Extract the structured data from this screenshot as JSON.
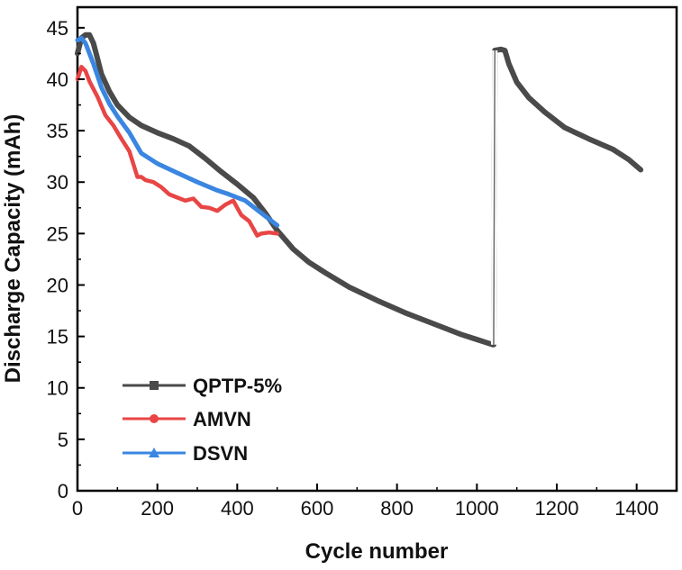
{
  "chart_data": {
    "type": "line",
    "title": "",
    "xlabel": "Cycle number",
    "ylabel": "Discharge Capacity (mAh)",
    "xlim": [
      0,
      1500
    ],
    "ylim": [
      0,
      47
    ],
    "xticks": [
      0,
      200,
      400,
      600,
      800,
      1000,
      1200,
      1400
    ],
    "yticks": [
      0,
      5,
      10,
      15,
      20,
      25,
      30,
      35,
      40,
      45
    ],
    "legend_position": "bottom-left",
    "series": [
      {
        "name": "QPTP-5%",
        "color": "#4a4a4a",
        "marker": "square",
        "x": [
          0,
          10,
          20,
          30,
          40,
          50,
          60,
          80,
          100,
          130,
          160,
          200,
          240,
          280,
          320,
          360,
          400,
          440,
          470,
          500,
          540,
          580,
          620,
          680,
          750,
          820,
          900,
          960,
          1000,
          1040,
          1042,
          1045,
          1060,
          1070,
          1080,
          1100,
          1130,
          1170,
          1220,
          1280,
          1340,
          1380,
          1410
        ],
        "y": [
          42.5,
          44,
          44.3,
          44.3,
          43.5,
          42,
          40.5,
          38.8,
          37.5,
          36.3,
          35.5,
          34.8,
          34.2,
          33.5,
          32.3,
          31,
          29.8,
          28.5,
          27,
          25.3,
          23.5,
          22.2,
          21.2,
          19.8,
          18.5,
          17.3,
          16.1,
          15.2,
          14.7,
          14.2,
          14.2,
          42.8,
          42.9,
          42.8,
          41.5,
          39.7,
          38.2,
          36.8,
          35.3,
          34.2,
          33.2,
          32.2,
          31.2
        ]
      },
      {
        "name": "AMVN",
        "color": "#e84545",
        "marker": "circle",
        "x": [
          0,
          10,
          20,
          30,
          50,
          70,
          90,
          110,
          130,
          150,
          160,
          170,
          190,
          210,
          230,
          250,
          270,
          290,
          310,
          330,
          350,
          370,
          390,
          410,
          430,
          450,
          460,
          480,
          500
        ],
        "y": [
          40,
          41.2,
          40.8,
          39.8,
          38.3,
          36.5,
          35.5,
          34.2,
          33,
          30.5,
          30.5,
          30.2,
          30,
          29.5,
          28.8,
          28.5,
          28.2,
          28.4,
          27.6,
          27.5,
          27.2,
          27.8,
          28.2,
          26.8,
          26.2,
          24.8,
          25,
          25.1,
          25
        ]
      },
      {
        "name": "DSVN",
        "color": "#3a86e0",
        "marker": "triangle",
        "x": [
          0,
          10,
          20,
          40,
          60,
          80,
          100,
          130,
          160,
          200,
          250,
          300,
          350,
          380,
          420,
          460,
          500
        ],
        "y": [
          43.8,
          44,
          43.5,
          41.5,
          39.2,
          37.6,
          36.4,
          34.8,
          32.8,
          31.8,
          30.9,
          30,
          29.2,
          28.8,
          28.2,
          27,
          25.8
        ]
      }
    ]
  }
}
